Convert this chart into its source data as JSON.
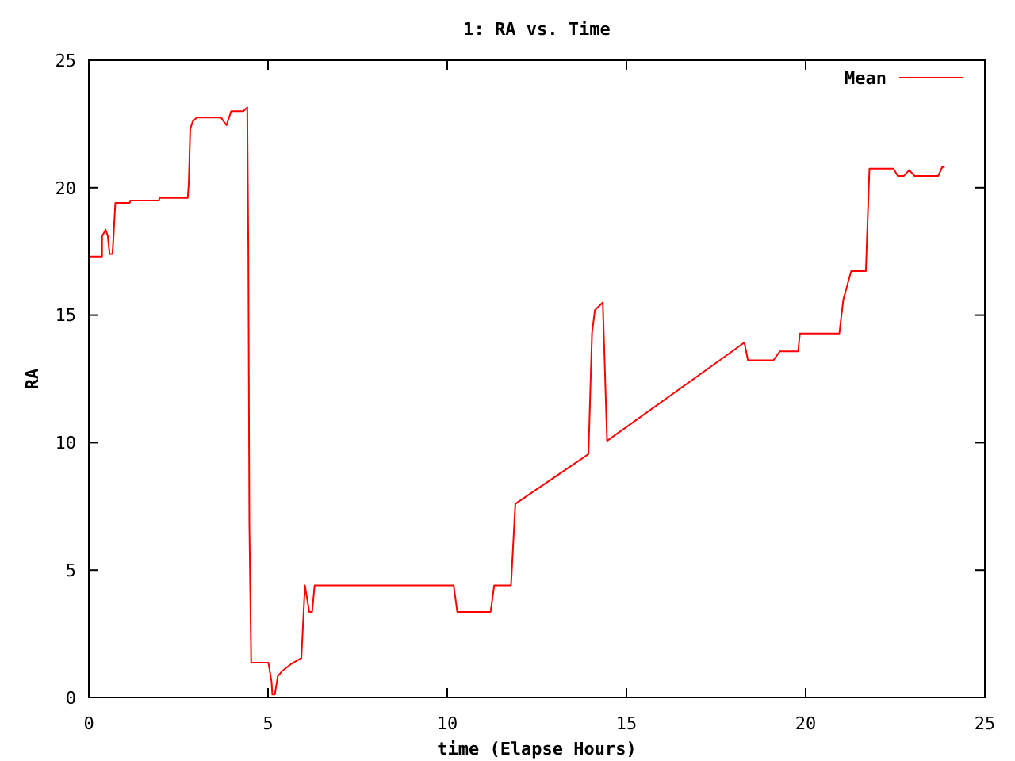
{
  "chart_data": {
    "type": "line",
    "title": "1: RA vs. Time",
    "xlabel": "time (Elapse Hours)",
    "ylabel": "RA",
    "xlim": [
      0,
      25
    ],
    "xticks": [
      0,
      5,
      10,
      15,
      20,
      25
    ],
    "ylim": [
      0,
      25
    ],
    "yticks": [
      0,
      5,
      10,
      15,
      20,
      25
    ],
    "grid": false,
    "legend": "top right",
    "marker": "none",
    "line_style": "solid",
    "series": [
      {
        "name": "Mean",
        "color": "#ff0000",
        "x": [
          0,
          0.37,
          0.37,
          0.47,
          0.53,
          0.58,
          0.66,
          0.69,
          0.74,
          1.14,
          1.16,
          1.95,
          1.98,
          2.76,
          2.79,
          2.83,
          2.9,
          3.01,
          3.69,
          3.84,
          3.97,
          4.31,
          4.42,
          4.45,
          4.48,
          4.53,
          5.01,
          5.1,
          5.12,
          5.19,
          5.27,
          5.4,
          5.63,
          5.93,
          6.03,
          6.15,
          6.23,
          6.3,
          10.18,
          10.28,
          11.21,
          11.31,
          11.78,
          11.9,
          13.94,
          14.04,
          14.12,
          14.34,
          14.46,
          17.85,
          18.29,
          18.39,
          19.1,
          19.28,
          19.79,
          19.84,
          20.94,
          21.05,
          21.27,
          21.68,
          21.78,
          22.45,
          22.57,
          22.74,
          22.89,
          23.04,
          23.7,
          23.81,
          23.88
        ],
        "values": [
          17.3,
          17.3,
          18.1,
          18.35,
          18.1,
          17.4,
          17.4,
          18.1,
          19.4,
          19.4,
          19.5,
          19.5,
          19.6,
          19.6,
          20.2,
          22.3,
          22.6,
          22.75,
          22.75,
          22.45,
          23.0,
          23.0,
          23.15,
          17.6,
          6.8,
          1.37,
          1.37,
          0.6,
          0.12,
          0.12,
          0.83,
          1.05,
          1.3,
          1.55,
          4.4,
          3.36,
          3.36,
          4.4,
          4.4,
          3.36,
          3.36,
          4.4,
          4.4,
          7.6,
          9.55,
          14.3,
          15.2,
          15.5,
          10.07,
          13.48,
          13.93,
          13.23,
          13.23,
          13.58,
          13.58,
          14.28,
          14.28,
          15.6,
          16.73,
          16.73,
          20.75,
          20.75,
          20.46,
          20.46,
          20.69,
          20.46,
          20.46,
          20.81,
          20.81
        ]
      }
    ]
  }
}
